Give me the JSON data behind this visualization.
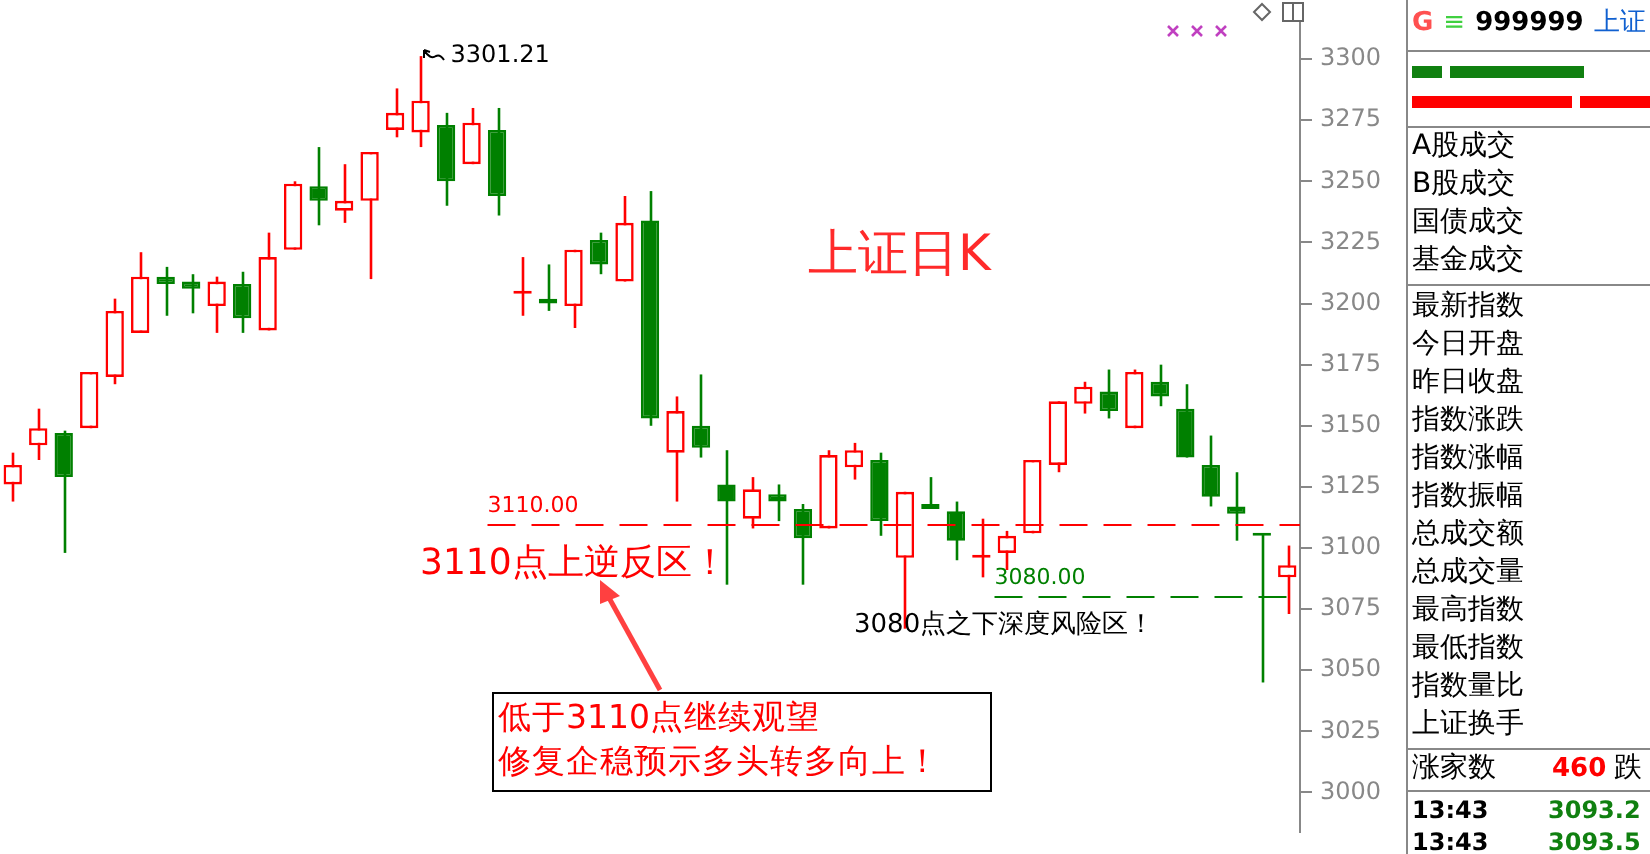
{
  "chart_data": [
    {
      "type": "candlestick",
      "title": "上证日K",
      "categories": [
        null,
        null,
        null,
        null,
        null,
        null,
        null,
        null,
        null,
        null,
        null,
        null,
        null,
        null,
        null,
        null,
        null,
        null,
        null,
        null,
        null,
        null,
        null,
        null,
        null,
        null,
        null,
        null,
        null,
        null,
        null,
        null,
        null,
        null,
        null,
        null,
        null,
        null,
        null,
        null,
        null,
        null,
        null,
        null,
        null,
        null,
        null,
        null,
        null,
        null,
        null
      ],
      "ohlc": [
        [
          3126,
          3139,
          3119,
          3134
        ],
        [
          3142,
          3157,
          3136,
          3149
        ],
        [
          3147,
          3148,
          3098,
          3129
        ],
        [
          3149,
          3172,
          3149,
          3172
        ],
        [
          3170,
          3202,
          3167,
          3197
        ],
        [
          3188,
          3221,
          3188,
          3211
        ],
        [
          3211,
          3215,
          3195,
          3208
        ],
        [
          3209,
          3212,
          3196,
          3206
        ],
        [
          3199,
          3211,
          3188,
          3209
        ],
        [
          3208,
          3213,
          3188,
          3194
        ],
        [
          3189,
          3229,
          3189,
          3219
        ],
        [
          3222,
          3250,
          3222,
          3249
        ],
        [
          3248,
          3264,
          3232,
          3242
        ],
        [
          3238,
          3257,
          3233,
          3242
        ],
        [
          3242,
          3262,
          3210,
          3262
        ],
        [
          3271,
          3288,
          3268,
          3278
        ],
        [
          3270,
          3301.21,
          3264,
          3283
        ],
        [
          3273,
          3278,
          3240,
          3250
        ],
        [
          3257,
          3280,
          3257,
          3274
        ],
        [
          3271,
          3280,
          3236,
          3244
        ],
        [
          3204,
          3219,
          3195,
          3205
        ],
        [
          3202,
          3216,
          3197,
          3200
        ],
        [
          3199,
          3222,
          3190,
          3222
        ],
        [
          3226,
          3229,
          3212,
          3216
        ],
        [
          3209,
          3244,
          3209,
          3233
        ],
        [
          3234,
          3246,
          3150,
          3153
        ],
        [
          3139,
          3162,
          3119,
          3156
        ],
        [
          3150,
          3171,
          3137,
          3141
        ],
        [
          3126,
          3140,
          3085,
          3119
        ],
        [
          3112,
          3129,
          3108,
          3124
        ],
        [
          3122,
          3126,
          3111,
          3119
        ],
        [
          3116,
          3118,
          3085,
          3104
        ],
        [
          3108,
          3140,
          3108,
          3138
        ],
        [
          3133,
          3143,
          3128,
          3140
        ],
        [
          3136,
          3139,
          3105,
          3111
        ],
        [
          3096,
          3123,
          3067,
          3123
        ],
        [
          3118,
          3129,
          3116,
          3116
        ],
        [
          3115,
          3119,
          3095,
          3103
        ],
        [
          3096,
          3112,
          3088,
          3097
        ],
        [
          3098,
          3107,
          3091,
          3105
        ],
        [
          3106,
          3136,
          3106,
          3136
        ],
        [
          3134,
          3160,
          3131,
          3160
        ],
        [
          3159,
          3168,
          3155,
          3166
        ],
        [
          3164,
          3173,
          3153,
          3156
        ],
        [
          3149,
          3173,
          3149,
          3172
        ],
        [
          3168,
          3175,
          3158,
          3162
        ],
        [
          3157,
          3167,
          3137,
          3137
        ],
        [
          3134,
          3146,
          3117,
          3121
        ],
        [
          3117,
          3131,
          3103,
          3114
        ],
        [
          3106,
          3106,
          3045,
          3105
        ],
        [
          3088,
          3101,
          3073,
          3093
        ]
      ],
      "colors": [
        "#ff0000",
        "#ff0000",
        "#008000",
        "#ff0000",
        "#ff0000",
        "#ff0000",
        "#008000",
        "#008000",
        "#ff0000",
        "#008000",
        "#ff0000",
        "#ff0000",
        "#008000",
        "#ff0000",
        "#ff0000",
        "#ff0000",
        "#ff0000",
        "#008000",
        "#ff0000",
        "#008000",
        "#ff0000",
        "#008000",
        "#ff0000",
        "#008000",
        "#ff0000",
        "#008000",
        "#ff0000",
        "#008000",
        "#008000",
        "#ff0000",
        "#008000",
        "#008000",
        "#ff0000",
        "#ff0000",
        "#008000",
        "#ff0000",
        "#008000",
        "#008000",
        "#ff0000",
        "#ff0000",
        "#ff0000",
        "#ff0000",
        "#ff0000",
        "#008000",
        "#ff0000",
        "#008000",
        "#008000",
        "#008000",
        "#008000",
        "#008000",
        "#ff0000"
      ],
      "ylim": [
        2984,
        3315
      ],
      "yticks": [
        3000,
        3025,
        3050,
        3075,
        3100,
        3125,
        3150,
        3175,
        3200,
        3225,
        3250,
        3275,
        3300
      ],
      "tick_labels": "y",
      "ref_lines": [
        {
          "axis": "y",
          "value": 3110,
          "label": "3110.00",
          "color": "#ff0000",
          "line_style": "dashed"
        },
        {
          "axis": "y",
          "value": 3080,
          "label": "3080.00",
          "color": "#008000",
          "line_style": "dashed"
        }
      ],
      "annotations": [
        "3301.21",
        "3110点上逆反区！",
        "3080点之下深度风险区！",
        "低于3110点继续观望",
        "修复企稳预示多头转多向上！"
      ]
    },
    {
      "type": "other",
      "annotations": [
        "G",
        "≡",
        "999999",
        "上证",
        "A股成交",
        "B股成交",
        "国债成交",
        "基金成交",
        "最新指数",
        "今日开盘",
        "昨日收盘",
        "指数涨跌",
        "指数涨幅",
        "指数振幅",
        "总成交额",
        "总成交量",
        "最高指数",
        "最低指数",
        "指数量比",
        "上证换手",
        "涨家数",
        "460",
        "跌",
        "13:43",
        "3093.2",
        "13:43",
        "3093.5"
      ]
    }
  ]
}
